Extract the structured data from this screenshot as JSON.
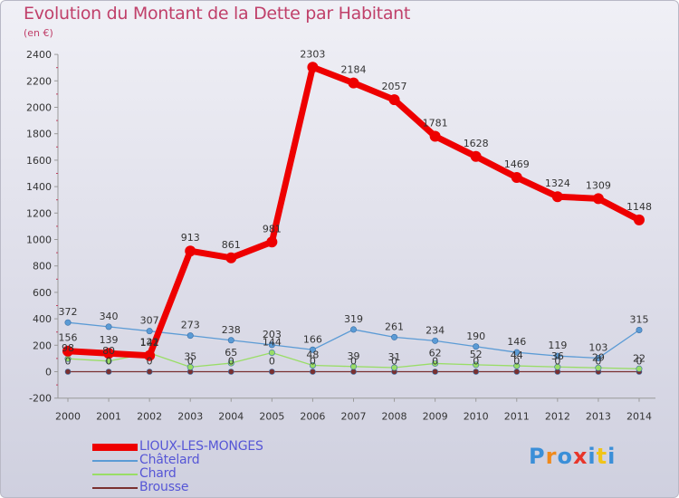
{
  "chart_title": "Evolution du Montant de la Dette par Habitant",
  "unit_label": "(en €)",
  "logo_text": "Proxiti",
  "chart_data": {
    "type": "line",
    "title": "Evolution du Montant de la Dette par Habitant",
    "subtitle": "(en €)",
    "xlabel": "",
    "ylabel": "",
    "x": [
      2000,
      2001,
      2002,
      2003,
      2004,
      2005,
      2006,
      2007,
      2008,
      2009,
      2010,
      2011,
      2012,
      2013,
      2014
    ],
    "x_labels": [
      "2000",
      "2001",
      "2002",
      "2003",
      "2004",
      "2005",
      "2006",
      "2007",
      "2008",
      "2009",
      "2010",
      "2011",
      "2012",
      "2013",
      "2014"
    ],
    "ylim": [
      -200,
      2400
    ],
    "yticks": [
      -200,
      0,
      200,
      400,
      600,
      800,
      1000,
      1200,
      1400,
      1600,
      1800,
      2000,
      2200,
      2400
    ],
    "ytick_labels": [
      "-200",
      "0",
      "200",
      "400",
      "600",
      "800",
      "1000",
      "1200",
      "1400",
      "1600",
      "1800",
      "2000",
      "2200",
      "2400"
    ],
    "grid": false,
    "legend_position": "bottom-left",
    "series": [
      {
        "name": "LIOUX-LES-MONGES",
        "color": "#ee0000",
        "values": [
          156,
          139,
          122,
          913,
          861,
          981,
          2303,
          2184,
          2057,
          1781,
          1628,
          1469,
          1324,
          1309,
          1148
        ],
        "labels": [
          "156",
          "139",
          "122",
          "913",
          "861",
          "981",
          "2303",
          "2184",
          "2057",
          "1781",
          "1628",
          "1469",
          "1324",
          "1309",
          "1148"
        ]
      },
      {
        "name": "Châtelard",
        "color": "#5b9bd5",
        "values": [
          372,
          340,
          307,
          273,
          238,
          203,
          166,
          319,
          261,
          234,
          190,
          146,
          119,
          103,
          315
        ],
        "labels": [
          "372",
          "340",
          "307",
          "273",
          "238",
          "203",
          "166",
          "319",
          "261",
          "234",
          "190",
          "146",
          "119",
          "103",
          "315"
        ]
      },
      {
        "name": "Chard",
        "color": "#99dd66",
        "values": [
          98,
          80,
          141,
          35,
          65,
          144,
          48,
          39,
          31,
          62,
          52,
          44,
          36,
          29,
          22
        ],
        "labels": [
          "98",
          "80",
          "141",
          "35",
          "65",
          "144",
          "48",
          "39",
          "31",
          "62",
          "52",
          "44",
          "36",
          "29",
          "22"
        ]
      },
      {
        "name": "Brousse",
        "color": "#7a3030",
        "values": [
          0,
          0,
          0,
          0,
          0,
          0,
          0,
          0,
          0,
          0,
          0,
          0,
          0,
          0,
          0
        ],
        "labels": [
          "0",
          "0",
          "0",
          "0",
          "0",
          "0",
          "0",
          "0",
          "0",
          "0",
          "0",
          "0",
          "0",
          "0",
          "0"
        ]
      }
    ]
  }
}
